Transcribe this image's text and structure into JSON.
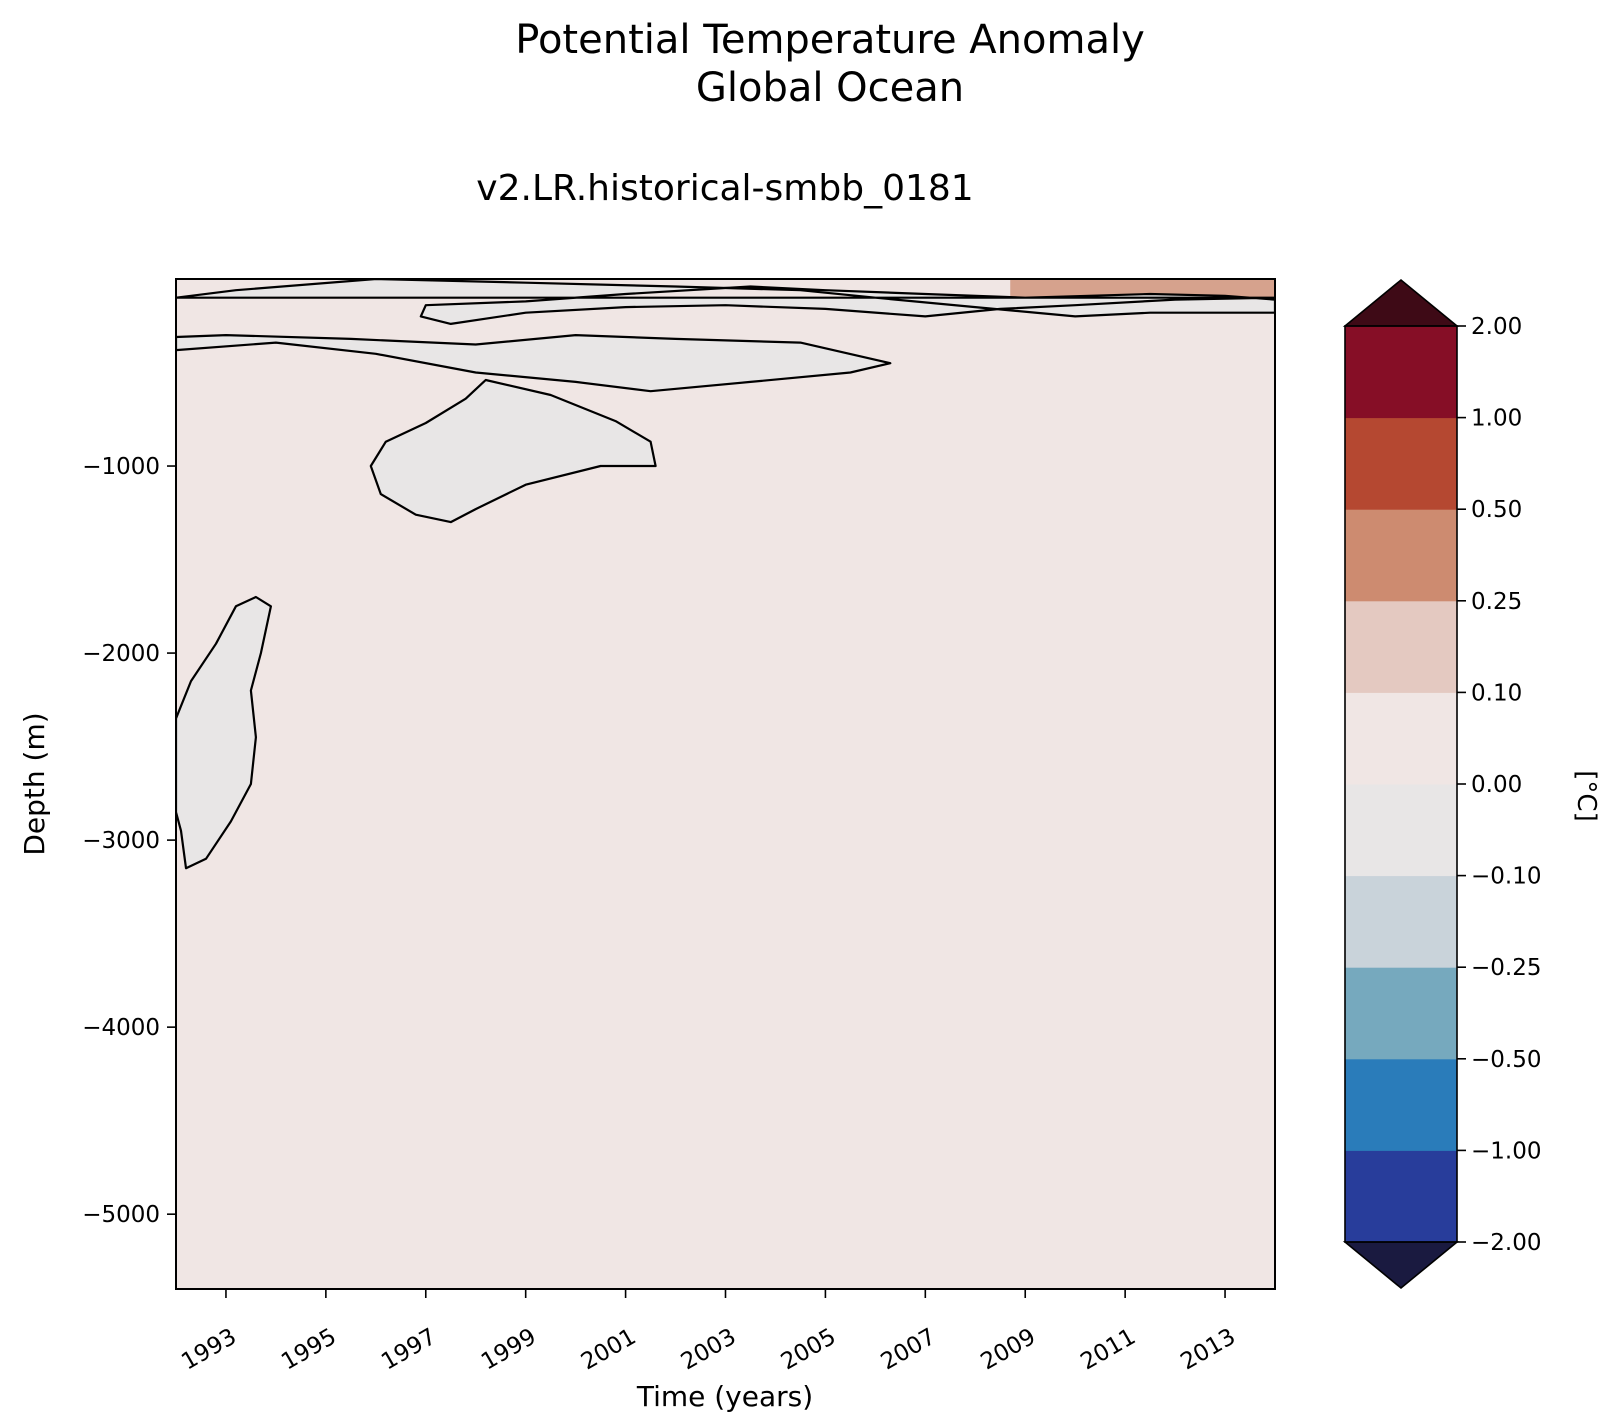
{
  "chart_data": {
    "type": "heatmap",
    "title": "Potential Temperature Anomaly",
    "subtitle": "Global Ocean",
    "run_label": "v2.LR.historical-smbb_0181",
    "xlabel": "Time (years)",
    "ylabel": "Depth (m)",
    "xlim": [
      1992.0,
      2014.0
    ],
    "ylim": [
      -5400,
      0
    ],
    "x_ticks": [
      1993,
      1995,
      1997,
      1999,
      2001,
      2003,
      2005,
      2007,
      2009,
      2011,
      2013
    ],
    "x_tick_labels": [
      "1993",
      "1995",
      "1997",
      "1999",
      "2001",
      "2003",
      "2005",
      "2007",
      "2009",
      "2011",
      "2013"
    ],
    "y_ticks": [
      -1000,
      -2000,
      -3000,
      -4000,
      -5000
    ],
    "y_tick_labels": [
      "−1000",
      "−2000",
      "−3000",
      "−4000",
      "−5000"
    ],
    "background_level": "0.00 to 0.10",
    "colorbar": {
      "label": "[°C]",
      "levels": [
        -2.0,
        -1.0,
        -0.5,
        -0.25,
        -0.1,
        0.0,
        0.1,
        0.25,
        0.5,
        1.0,
        2.0
      ],
      "tick_labels": [
        "−2.00",
        "−1.00",
        "−0.50",
        "−0.25",
        "−0.10",
        "0.00",
        "0.10",
        "0.25",
        "0.50",
        "1.00",
        "2.00"
      ],
      "colors": [
        "#283d9b",
        "#2a7cba",
        "#76a9be",
        "#c9d3da",
        "#e8e6e6",
        "#f0e6e4",
        "#e4c9c1",
        "#cd8b70",
        "#b54831",
        "#860e26"
      ],
      "under_color": "#1a1a40",
      "over_color": "#3e0a16",
      "extend": "both"
    },
    "contour_level": 0.0,
    "regions": [
      {
        "name": "surface-negative-band",
        "value_range": "-0.10 to 0.00",
        "points": [
          [
            1992.0,
            -100
          ],
          [
            1993.2,
            -60
          ],
          [
            1996,
            0
          ],
          [
            1999,
            -20
          ],
          [
            2002,
            -40
          ],
          [
            2004.5,
            -60
          ],
          [
            2006,
            -100
          ],
          [
            2008,
            -150
          ],
          [
            2010,
            -200
          ],
          [
            2011.5,
            -180
          ],
          [
            2014,
            -180
          ],
          [
            2014,
            -110
          ],
          [
            2013,
            -90
          ],
          [
            2011.5,
            -80
          ],
          [
            2009,
            -100
          ],
          [
            2007,
            -80
          ],
          [
            2005,
            -60
          ],
          [
            2003.5,
            -40
          ],
          [
            2001,
            -80
          ],
          [
            1999,
            -120
          ],
          [
            1997,
            -140
          ],
          [
            1996.9,
            -200
          ],
          [
            1997.5,
            -240
          ],
          [
            1999,
            -180
          ],
          [
            2001,
            -150
          ],
          [
            2003,
            -140
          ],
          [
            2005,
            -160
          ],
          [
            2007,
            -200
          ],
          [
            2008.5,
            -160
          ],
          [
            2010,
            -140
          ],
          [
            2012,
            -110
          ],
          [
            2014,
            -100
          ]
        ]
      },
      {
        "name": "upper-negative-tongue",
        "value_range": "-0.10 to 0.00",
        "points": [
          [
            1992.0,
            -380
          ],
          [
            1994,
            -340
          ],
          [
            1996,
            -400
          ],
          [
            1998,
            -500
          ],
          [
            2000,
            -550
          ],
          [
            2001.5,
            -600
          ],
          [
            2003.5,
            -550
          ],
          [
            2005.5,
            -500
          ],
          [
            2006.3,
            -450
          ],
          [
            2004.5,
            -340
          ],
          [
            2002,
            -320
          ],
          [
            2000,
            -300
          ],
          [
            1998,
            -350
          ],
          [
            1995.5,
            -320
          ],
          [
            1993,
            -300
          ],
          [
            1992,
            -310
          ]
        ]
      },
      {
        "name": "intermediate-negative-lens",
        "value_range": "-0.10 to 0.00",
        "points": [
          [
            1998.2,
            -540
          ],
          [
            1999.5,
            -620
          ],
          [
            2000.8,
            -760
          ],
          [
            2001.5,
            -870
          ],
          [
            2001.6,
            -1000
          ],
          [
            2000.5,
            -1000
          ],
          [
            1999,
            -1100
          ],
          [
            1998,
            -1230
          ],
          [
            1997.5,
            -1300
          ],
          [
            1996.8,
            -1260
          ],
          [
            1996.1,
            -1150
          ],
          [
            1995.9,
            -1000
          ],
          [
            1996.2,
            -870
          ],
          [
            1997,
            -770
          ],
          [
            1997.8,
            -640
          ]
        ]
      },
      {
        "name": "deep-negative-patch",
        "value_range": "-0.10 to 0.00",
        "points": [
          [
            1992.0,
            -2350
          ],
          [
            1992.3,
            -2150
          ],
          [
            1992.8,
            -1950
          ],
          [
            1993.2,
            -1750
          ],
          [
            1993.6,
            -1700
          ],
          [
            1993.9,
            -1750
          ],
          [
            1993.7,
            -2000
          ],
          [
            1993.5,
            -2200
          ],
          [
            1993.6,
            -2450
          ],
          [
            1993.5,
            -2700
          ],
          [
            1993.1,
            -2900
          ],
          [
            1992.6,
            -3100
          ],
          [
            1992.2,
            -3150
          ],
          [
            1992.1,
            -2950
          ],
          [
            1992.0,
            -2850
          ]
        ]
      }
    ],
    "surface_warm_patch": {
      "x_range": [
        2008.7,
        2014.0
      ],
      "depth_range": [
        -100,
        0
      ],
      "value_range": "0.25 to 0.50"
    }
  }
}
